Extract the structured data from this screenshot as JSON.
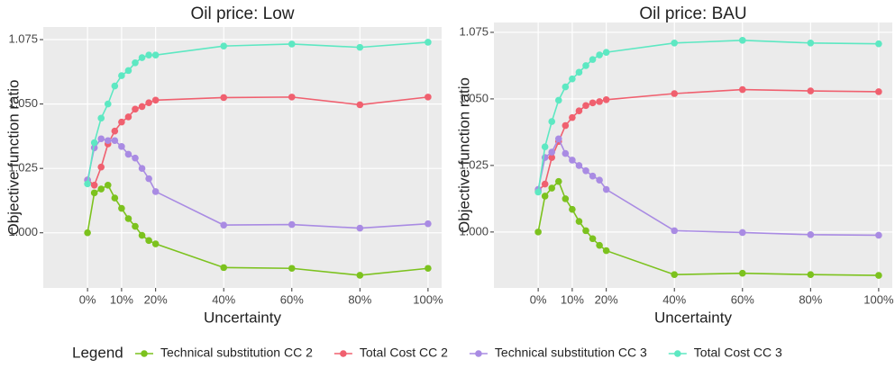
{
  "chart_data": [
    {
      "type": "line",
      "title": "Oil price: Low",
      "x_label": "Uncertainty",
      "y_label": "Objective function ratio",
      "x": [
        0,
        2,
        4,
        6,
        8,
        10,
        12,
        14,
        16,
        18,
        20,
        40,
        60,
        80,
        100
      ],
      "xlim": [
        -13,
        104
      ],
      "xticks": [
        {
          "value": 0,
          "label": "0%"
        },
        {
          "value": 10,
          "label": "10%"
        },
        {
          "value": 20,
          "label": "20%"
        },
        {
          "value": 40,
          "label": "40%"
        },
        {
          "value": 60,
          "label": "60%"
        },
        {
          "value": 80,
          "label": "80%"
        },
        {
          "value": 100,
          "label": "100%"
        }
      ],
      "ylim": [
        0.9786,
        1.0799
      ],
      "yticks": [
        {
          "value": 1,
          "label": "1.000"
        },
        1.025,
        {
          "value": 1.05,
          "label": "1.050"
        },
        1.075
      ],
      "grid": true,
      "series": [
        {
          "values": [
            1.0,
            1.0155,
            1.017,
            1.0185,
            1.0135,
            1.0095,
            1.0055,
            1.0025,
            0.999,
            0.997,
            0.9957,
            0.9865,
            0.9862,
            0.9835,
            0.9862
          ]
        },
        {
          "values": [
            1.0205,
            1.0185,
            1.0255,
            1.0345,
            1.0395,
            1.043,
            1.045,
            1.048,
            1.049,
            1.0505,
            1.0515,
            1.0525,
            1.0527,
            1.0497,
            1.0527
          ]
        },
        {
          "values": [
            1.0205,
            1.033,
            1.0365,
            1.0358,
            1.0358,
            1.0335,
            1.0305,
            1.029,
            1.025,
            1.021,
            1.016,
            1.003,
            1.0032,
            1.0018,
            1.0035
          ]
        },
        {
          "values": [
            1.019,
            1.035,
            1.0445,
            1.05,
            1.057,
            1.061,
            1.063,
            1.066,
            1.068,
            1.069,
            1.069,
            1.0725,
            1.0733,
            1.072,
            1.074
          ]
        }
      ]
    },
    {
      "type": "line",
      "title": "Oil price: BAU",
      "x_label": "Uncertainty",
      "y_label": "Objective function ratio",
      "x": [
        0,
        2,
        4,
        6,
        8,
        10,
        12,
        14,
        16,
        18,
        20,
        40,
        60,
        80,
        100
      ],
      "xlim": [
        -13,
        104
      ],
      "xticks": [
        {
          "value": 0,
          "label": "0%"
        },
        {
          "value": 10,
          "label": "10%"
        },
        {
          "value": 20,
          "label": "20%"
        },
        {
          "value": 40,
          "label": "40%"
        },
        {
          "value": 60,
          "label": "60%"
        },
        {
          "value": 80,
          "label": "80%"
        },
        {
          "value": 100,
          "label": "100%"
        }
      ],
      "ylim": [
        0.979,
        1.0787
      ],
      "yticks": [
        {
          "value": 1,
          "label": "1.000"
        },
        1.025,
        {
          "value": 1.05,
          "label": "1.050"
        },
        1.075
      ],
      "grid": true,
      "series": [
        {
          "values": [
            1.0,
            1.0135,
            1.0165,
            1.019,
            1.0125,
            1.0085,
            1.004,
            1.0005,
            0.9975,
            0.995,
            0.993,
            0.984,
            0.9845,
            0.984,
            0.9837
          ]
        },
        {
          "values": [
            1.0155,
            1.018,
            1.028,
            1.034,
            1.04,
            1.043,
            1.0455,
            1.0475,
            1.0485,
            1.049,
            1.0497,
            1.052,
            1.0535,
            1.053,
            1.0527
          ]
        },
        {
          "values": [
            1.016,
            1.028,
            1.03,
            1.035,
            1.0295,
            1.027,
            1.025,
            1.023,
            1.021,
            1.0195,
            1.016,
            1.0005,
            0.9998,
            0.999,
            0.9988
          ]
        },
        {
          "values": [
            1.015,
            1.032,
            1.0415,
            1.0495,
            1.0545,
            1.0575,
            1.06,
            1.0625,
            1.0648,
            1.0665,
            1.0675,
            1.071,
            1.072,
            1.071,
            1.0707
          ]
        }
      ]
    }
  ],
  "legend": {
    "title": "Legend",
    "entries": [
      {
        "name": "Technical substitution CC 2",
        "color": "#7cc21e"
      },
      {
        "name": "Total Cost CC 2",
        "color": "#f0606f"
      },
      {
        "name": "Technical substitution CC 3",
        "color": "#a98be3"
      },
      {
        "name": "Total Cost CC 3",
        "color": "#5de8c2"
      }
    ]
  }
}
